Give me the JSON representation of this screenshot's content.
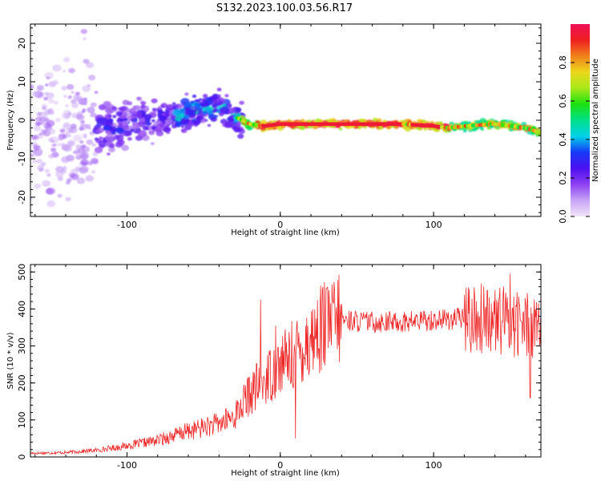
{
  "title": "S132.2023.100.03.56.R17",
  "colors": {
    "snr_line": "#ee2a2a",
    "colorbar": [
      "#f2e6fb",
      "#c8a5f5",
      "#8e40f2",
      "#4c10f0",
      "#1838f8",
      "#00d2e8",
      "#00e08a",
      "#1ce010",
      "#a8e81a",
      "#ecd81a",
      "#f0801c",
      "#ee2020",
      "#ee1058"
    ]
  },
  "chart_data": [
    {
      "type": "heatmap",
      "name": "spectrogram",
      "xlabel": "Height of straight line (km)",
      "ylabel": "Frequency (Hz)",
      "xlim": [
        -163,
        170
      ],
      "ylim": [
        -25,
        25
      ],
      "xticks": [
        -100,
        0,
        100
      ],
      "xtick_labels": [
        "-100",
        "0",
        "100"
      ],
      "yticks": [
        -20,
        -10,
        0,
        10,
        20
      ],
      "ytick_labels": [
        "-20",
        "-10",
        "0",
        "10",
        "20"
      ],
      "ridge": {
        "x": [
          -130,
          -110,
          -90,
          -70,
          -50,
          -40,
          -30,
          -20,
          -10,
          0,
          20,
          40,
          60,
          80,
          100,
          110,
          120,
          140,
          160,
          168
        ],
        "freq": [
          -3,
          -2,
          0,
          1,
          3,
          4,
          1,
          -1,
          -1.5,
          -1,
          -1,
          -1,
          -1,
          -1,
          -1.5,
          -2,
          -1.5,
          -1,
          -2,
          -3
        ]
      },
      "colorbar": {
        "label": "Normalized spectral amplitude",
        "range": [
          0,
          1
        ],
        "ticks": [
          0,
          0.2,
          0.4,
          0.6,
          0.8
        ],
        "tick_labels": [
          "0.0",
          "0.2",
          "0.4",
          "0.6",
          "0.8"
        ]
      }
    },
    {
      "type": "line",
      "name": "snr",
      "xlabel": "Height of straight line (km)",
      "ylabel": "SNR (10 * v/v)",
      "xlim": [
        -163,
        170
      ],
      "ylim": [
        0,
        520
      ],
      "xticks": [
        -100,
        0,
        100
      ],
      "xtick_labels": [
        "-100",
        "0",
        "100"
      ],
      "yticks": [
        0,
        100,
        200,
        300,
        400,
        500
      ],
      "ytick_labels": [
        "0",
        "100",
        "200",
        "300",
        "400",
        "500"
      ],
      "trend": {
        "x": [
          -163,
          -140,
          -120,
          -100,
          -80,
          -60,
          -40,
          -30,
          -20,
          -10,
          0,
          10,
          20,
          30,
          40,
          60,
          80,
          100,
          120,
          140,
          160,
          170
        ],
        "y": [
          10,
          12,
          18,
          30,
          45,
          70,
          90,
          110,
          170,
          210,
          250,
          280,
          320,
          360,
          370,
          365,
          365,
          370,
          375,
          370,
          360,
          360
        ]
      },
      "spikes": {
        "x": [
          -13,
          -3,
          10,
          30,
          135,
          150,
          163
        ],
        "y": [
          425,
          355,
          50,
          455,
          450,
          495,
          160
        ]
      }
    }
  ]
}
